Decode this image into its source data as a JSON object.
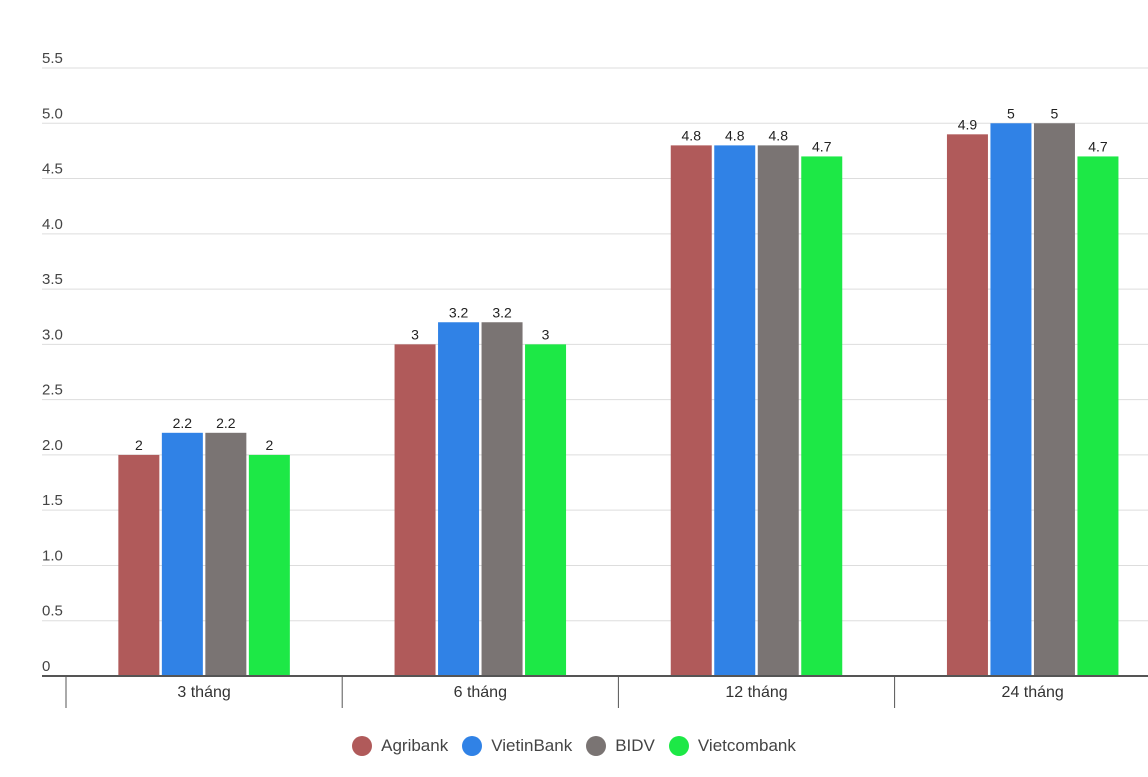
{
  "chart_data": {
    "type": "bar",
    "categories": [
      "3 tháng",
      "6 tháng",
      "12 tháng",
      "24 tháng"
    ],
    "series": [
      {
        "name": "Agribank",
        "color": "#b05a5a",
        "values": [
          2,
          3,
          4.8,
          4.9
        ]
      },
      {
        "name": "VietinBank",
        "color": "#3082e6",
        "values": [
          2.2,
          3.2,
          4.8,
          5
        ]
      },
      {
        "name": "BIDV",
        "color": "#7a7473",
        "values": [
          2.2,
          3.2,
          4.8,
          5
        ]
      },
      {
        "name": "Vietcombank",
        "color": "#1de846",
        "values": [
          2,
          3,
          4.7,
          4.7
        ]
      }
    ],
    "yticks": [
      "0",
      "0.5",
      "1.0",
      "1.5",
      "2.0",
      "2.5",
      "3.0",
      "3.5",
      "4.0",
      "4.5",
      "5.0",
      "5.5"
    ],
    "ylim": [
      0,
      5.5
    ],
    "grid": true,
    "legend_position": "bottom-center",
    "title": "",
    "xlabel": "",
    "ylabel": ""
  }
}
